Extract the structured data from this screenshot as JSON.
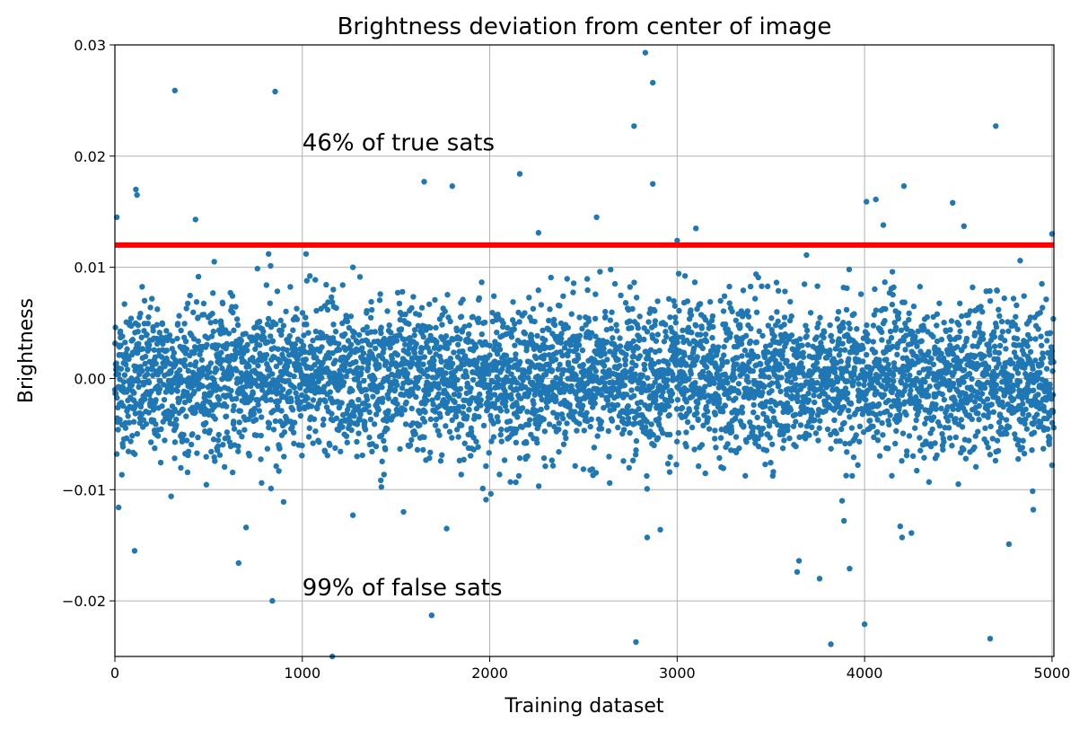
{
  "chart_data": {
    "type": "scatter",
    "title": "Brightness deviation from center of image",
    "xlabel": "Training dataset",
    "ylabel": "Brightness",
    "xlim": [
      0,
      5010
    ],
    "ylim": [
      -0.025,
      0.03
    ],
    "grid": true,
    "x_ticks": [
      0,
      1000,
      2000,
      3000,
      4000,
      5000
    ],
    "x_tick_labels": [
      "0",
      "1000",
      "2000",
      "3000",
      "4000",
      "5000"
    ],
    "y_ticks": [
      -0.02,
      -0.01,
      0.0,
      0.01,
      0.02,
      0.03
    ],
    "y_tick_labels": [
      "−0.02",
      "−0.01",
      "0.00",
      "0.01",
      "0.02",
      "0.03"
    ],
    "series": [
      {
        "color": "#1f77b4",
        "bulk": {
          "x_range": [
            0,
            5010
          ],
          "y_center": 0.0,
          "y_std": 0.0033,
          "count": 5000,
          "y_clip": 0.0105
        },
        "outliers": [
          [
            10,
            0.0145
          ],
          [
            20,
            -0.0116
          ],
          [
            105,
            -0.0155
          ],
          [
            112,
            0.017
          ],
          [
            118,
            0.0165
          ],
          [
            320,
            0.0259
          ],
          [
            430,
            0.0143
          ],
          [
            660,
            -0.0166
          ],
          [
            700,
            -0.0134
          ],
          [
            820,
            0.0112
          ],
          [
            840,
            -0.02
          ],
          [
            855,
            0.0258
          ],
          [
            900,
            -0.0111
          ],
          [
            1020,
            0.0112
          ],
          [
            1160,
            -0.025
          ],
          [
            1650,
            0.0177
          ],
          [
            1690,
            -0.0213
          ],
          [
            1770,
            -0.0135
          ],
          [
            1800,
            0.0173
          ],
          [
            2160,
            0.0184
          ],
          [
            2260,
            0.0131
          ],
          [
            2570,
            0.0145
          ],
          [
            2770,
            0.0227
          ],
          [
            2780,
            -0.0237
          ],
          [
            2830,
            0.0293
          ],
          [
            2870,
            0.0266
          ],
          [
            2840,
            -0.0143
          ],
          [
            2870,
            0.0175
          ],
          [
            2910,
            -0.0136
          ],
          [
            3000,
            0.0124
          ],
          [
            3100,
            0.0135
          ],
          [
            3650,
            -0.0164
          ],
          [
            3640,
            -0.0174
          ],
          [
            3760,
            -0.018
          ],
          [
            3820,
            -0.0239
          ],
          [
            3880,
            -0.011
          ],
          [
            3890,
            -0.0128
          ],
          [
            3920,
            -0.0171
          ],
          [
            4000,
            -0.0221
          ],
          [
            4010,
            0.0159
          ],
          [
            4060,
            0.0161
          ],
          [
            4100,
            0.0138
          ],
          [
            4190,
            -0.0133
          ],
          [
            4200,
            -0.0143
          ],
          [
            4210,
            0.0173
          ],
          [
            4250,
            -0.0139
          ],
          [
            4470,
            0.0158
          ],
          [
            4530,
            0.0137
          ],
          [
            4670,
            -0.0234
          ],
          [
            4700,
            0.0227
          ],
          [
            4770,
            -0.0149
          ],
          [
            4900,
            -0.0118
          ],
          [
            5000,
            0.013
          ],
          [
            4830,
            0.0106
          ],
          [
            3690,
            0.0111
          ],
          [
            1270,
            0.01
          ],
          [
            530,
            0.0105
          ],
          [
            1980,
            -0.0109
          ],
          [
            2640,
            -0.0094
          ],
          [
            4500,
            -0.0095
          ],
          [
            5000,
            -0.0078
          ],
          [
            300,
            -0.0106
          ],
          [
            1270,
            -0.0123
          ],
          [
            1540,
            -0.012
          ],
          [
            3000,
            0.0121
          ]
        ]
      }
    ],
    "threshold_line": {
      "y": 0.012,
      "color": "#ff0000"
    },
    "annotations": [
      {
        "text": "46% of true sats",
        "x": 1000,
        "y": 0.0205
      },
      {
        "text": "99% of false sats",
        "x": 1000,
        "y": -0.0195
      }
    ]
  }
}
